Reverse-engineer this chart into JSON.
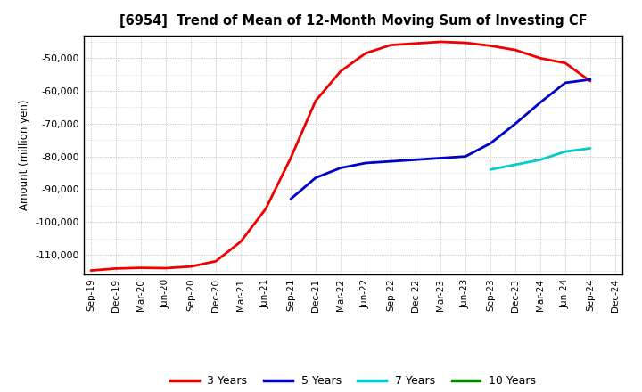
{
  "title": "[6954]  Trend of Mean of 12-Month Moving Sum of Investing CF",
  "ylabel": "Amount (million yen)",
  "ylim": [
    -116000,
    -43000
  ],
  "yticks": [
    -110000,
    -100000,
    -90000,
    -80000,
    -70000,
    -60000,
    -50000
  ],
  "background_color": "#ffffff",
  "plot_bg_color": "#ffffff",
  "grid_color": "#999999",
  "legend_labels": [
    "3 Years",
    "5 Years",
    "7 Years",
    "10 Years"
  ],
  "legend_colors": [
    "#ee0000",
    "#0000cc",
    "#00cccc",
    "#008800"
  ],
  "x_labels": [
    "Sep-19",
    "Dec-19",
    "Mar-20",
    "Jun-20",
    "Sep-20",
    "Dec-20",
    "Mar-21",
    "Jun-21",
    "Sep-21",
    "Dec-21",
    "Mar-22",
    "Jun-22",
    "Sep-22",
    "Dec-22",
    "Mar-23",
    "Jun-23",
    "Sep-23",
    "Dec-23",
    "Mar-24",
    "Jun-24",
    "Sep-24",
    "Dec-24"
  ],
  "series_3y": {
    "color": "#ee0000",
    "x": [
      0,
      1,
      2,
      3,
      4,
      5,
      6,
      7,
      8,
      9,
      10,
      11,
      12,
      13,
      14,
      15,
      16,
      17,
      18,
      19,
      20
    ],
    "y": [
      -114800,
      -114200,
      -114000,
      -114100,
      -113600,
      -112000,
      -106000,
      -96000,
      -80500,
      -63000,
      -54000,
      -48500,
      -46000,
      -45500,
      -45000,
      -45300,
      -46200,
      -47500,
      -50000,
      -51500,
      -57000
    ]
  },
  "series_5y": {
    "color": "#0000cc",
    "x": [
      8,
      9,
      10,
      11,
      12,
      13,
      14,
      15,
      16,
      17,
      18,
      19,
      20
    ],
    "y": [
      -93000,
      -86500,
      -83500,
      -82000,
      -81500,
      -81000,
      -80500,
      -80000,
      -76000,
      -70000,
      -63500,
      -57500,
      -56500
    ]
  },
  "series_7y": {
    "color": "#00cccc",
    "x": [
      16,
      17,
      18,
      19,
      20
    ],
    "y": [
      -84000,
      -82500,
      -81000,
      -78500,
      -77500
    ]
  },
  "series_10y": {
    "color": "#008800",
    "x": [],
    "y": []
  },
  "linewidth": 2.0
}
